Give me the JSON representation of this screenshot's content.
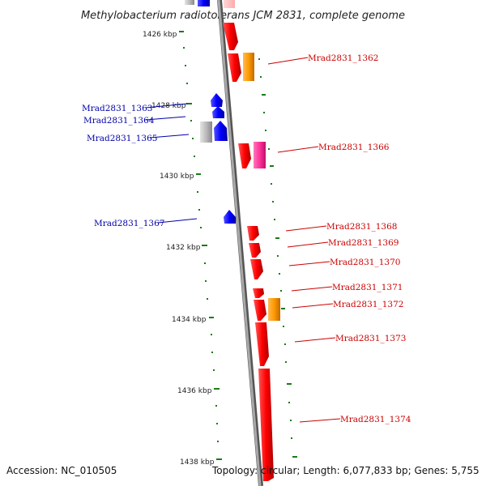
{
  "title": "Methylobacterium radiotolerans JCM 2831, complete genome",
  "footer": {
    "accession": "Accession: NC_010505",
    "topology": "Topology: circular; Length: 6,077,833 bp; Genes: 5,755"
  },
  "colors": {
    "forward_gene": "#ff0000",
    "reverse_gene": "#0000ee",
    "rna_orange": "#ff9900",
    "rna_magenta": "#ff3399",
    "grey_feature": "#bbbbbb",
    "label_forward": "#cc0000",
    "label_reverse": "#0000aa",
    "dots": "#1a7a1a"
  },
  "ticks": [
    {
      "kbp": 1426,
      "label": "1426 kbp"
    },
    {
      "kbp": 1428,
      "label": "1428 kbp"
    },
    {
      "kbp": 1430,
      "label": "1430 kbp"
    },
    {
      "kbp": 1432,
      "label": "1432 kbp"
    },
    {
      "kbp": 1434,
      "label": "1434 kbp"
    },
    {
      "kbp": 1436,
      "label": "1436 kbp"
    },
    {
      "kbp": 1438,
      "label": "1438 kbp"
    }
  ],
  "labels": [
    {
      "text": "Mrad2831_1362",
      "strand": "forward"
    },
    {
      "text": "Mrad2831_1363",
      "strand": "reverse"
    },
    {
      "text": "Mrad2831_1364",
      "strand": "reverse"
    },
    {
      "text": "Mrad2831_1365",
      "strand": "reverse"
    },
    {
      "text": "Mrad2831_1366",
      "strand": "forward"
    },
    {
      "text": "Mrad2831_1367",
      "strand": "reverse"
    },
    {
      "text": "Mrad2831_1368",
      "strand": "forward"
    },
    {
      "text": "Mrad2831_1369",
      "strand": "forward"
    },
    {
      "text": "Mrad2831_1370",
      "strand": "forward"
    },
    {
      "text": "Mrad2831_1371",
      "strand": "forward"
    },
    {
      "text": "Mrad2831_1372",
      "strand": "forward"
    },
    {
      "text": "Mrad2831_1373",
      "strand": "forward"
    },
    {
      "text": "Mrad2831_1374",
      "strand": "forward"
    }
  ]
}
